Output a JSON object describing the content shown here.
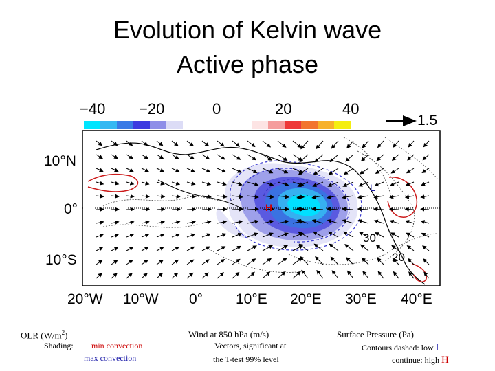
{
  "title_line1": "Evolution of Kelvin wave",
  "title_line2": "Active phase",
  "colorbar": {
    "labels": [
      "−40",
      "−20",
      "0",
      "20",
      "40"
    ],
    "neg_colors": [
      "#00e5ff",
      "#36b8f2",
      "#3a7ae6",
      "#3d3ae0",
      "#8e8ee8",
      "#dcdcf6"
    ],
    "pos_colors": [
      "#fde4e4",
      "#f59d9d",
      "#ee3838",
      "#f2742e",
      "#f7b12a",
      "#f4ee10"
    ]
  },
  "ref_vector_label": "1.5",
  "lat_labels": [
    "10°N",
    "0°",
    "10°S"
  ],
  "lon_labels": [
    "20°W",
    "10°W",
    "0°",
    "10°E",
    "20°E",
    "30°E",
    "40°E"
  ],
  "map_marks": {
    "low": "L",
    "high": "H",
    "contour_30": "30",
    "contour_20": "20"
  },
  "captions": {
    "olr_title": "OLR (W/m",
    "olr_sup": "2",
    "olr_close": ")",
    "shading_label": "Shading:",
    "min_conv": "min convection",
    "max_conv": "max convection",
    "wind_title": "Wind at 850 hPa (m/s)",
    "wind_line1": "Vectors, significant at",
    "wind_line2": "the T-test 99% level",
    "sp_title": "Surface Pressure (Pa)",
    "sp_line1": "Contours dashed: low",
    "sp_line1_mark": "L",
    "sp_line2": "continue:  high",
    "sp_line2_mark": "H"
  }
}
